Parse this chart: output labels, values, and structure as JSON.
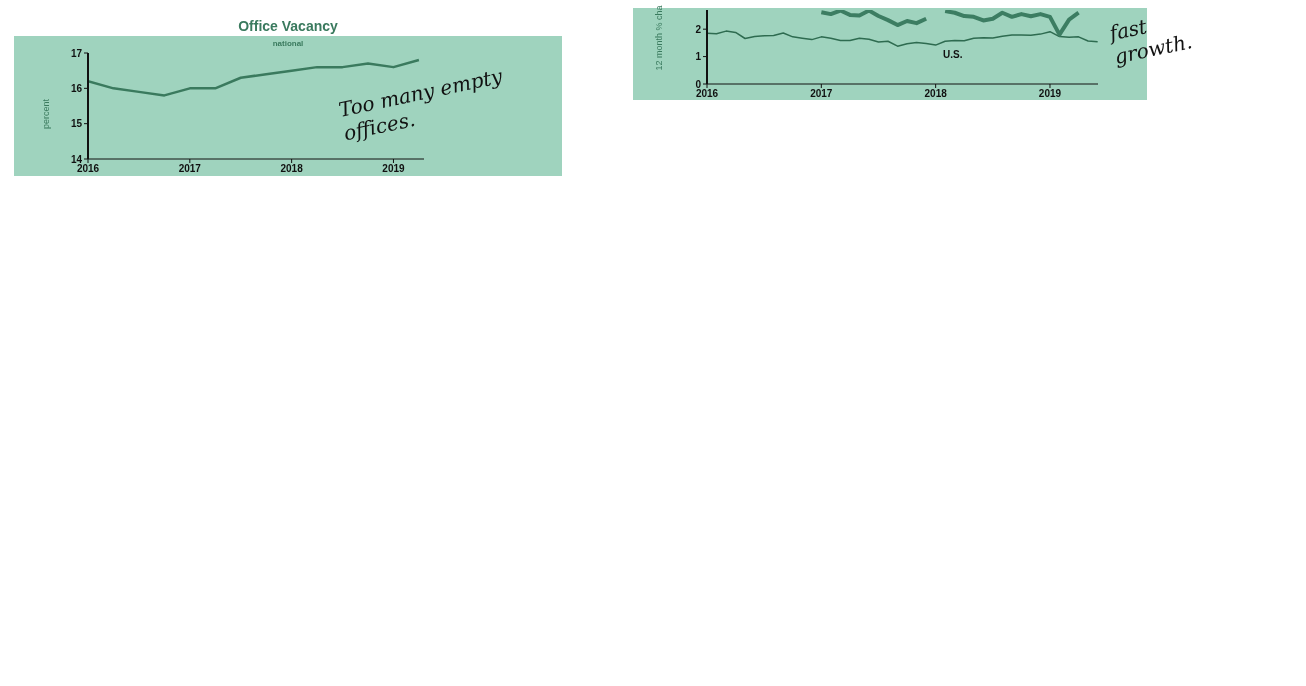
{
  "chart_data": [
    {
      "type": "line",
      "title": "Office Vacancy",
      "subtitle": "national",
      "ylabel": "percent",
      "x": [
        2016,
        2016.25,
        2016.5,
        2016.75,
        2017,
        2017.25,
        2017.5,
        2017.75,
        2018,
        2018.25,
        2018.5,
        2018.75,
        2019,
        2019.25
      ],
      "series": [
        {
          "color": "#3a7a5e",
          "values": [
            16.2,
            16.0,
            15.9,
            15.8,
            16.0,
            16.0,
            16.3,
            16.4,
            16.5,
            16.6,
            16.6,
            16.7,
            16.6,
            16.8
          ]
        }
      ],
      "xlim": [
        2016,
        2019.3
      ],
      "xticks": [
        2016,
        2017,
        2018,
        2019
      ],
      "ylim": [
        14,
        17
      ],
      "yticks": [
        14,
        15,
        16,
        17
      ],
      "annotations": [
        "Too many empty offices."
      ],
      "grid": false,
      "legend": false,
      "marker": "none",
      "line_style": "solid"
    },
    {
      "type": "line",
      "ylabel": "12 month % cha",
      "x": [
        2016,
        2016.083,
        2016.167,
        2016.25,
        2016.333,
        2016.417,
        2016.5,
        2016.583,
        2016.667,
        2016.75,
        2016.833,
        2016.917,
        2017,
        2017.083,
        2017.167,
        2017.25,
        2017.333,
        2017.417,
        2017.5,
        2017.583,
        2017.667,
        2017.75,
        2017.833,
        2017.917,
        2018,
        2018.083,
        2018.167,
        2018.25,
        2018.333,
        2018.417,
        2018.5,
        2018.583,
        2018.667,
        2018.75,
        2018.833,
        2018.917,
        2019,
        2019.083,
        2019.167,
        2019.25,
        2019.333,
        2019.417
      ],
      "series": [
        {
          "name": "U.S.",
          "color": "#2e6b50",
          "values": [
            1.85,
            1.83,
            1.93,
            1.88,
            1.66,
            1.73,
            1.76,
            1.77,
            1.86,
            1.72,
            1.67,
            1.62,
            1.72,
            1.67,
            1.59,
            1.59,
            1.67,
            1.63,
            1.53,
            1.56,
            1.38,
            1.47,
            1.51,
            1.48,
            1.42,
            1.56,
            1.59,
            1.58,
            1.67,
            1.69,
            1.68,
            1.74,
            1.79,
            1.79,
            1.78,
            1.82,
            1.91,
            1.73,
            1.71,
            1.72,
            1.57,
            1.54
          ]
        },
        {
          "color": "#3c7d62",
          "values": [
            null,
            null,
            null,
            null,
            null,
            null,
            null,
            null,
            null,
            null,
            null,
            null,
            2.62,
            2.55,
            2.68,
            2.52,
            2.5,
            2.68,
            2.48,
            2.33,
            2.15,
            2.3,
            2.22,
            2.38,
            null,
            2.66,
            2.6,
            2.48,
            2.45,
            2.32,
            2.38,
            2.6,
            2.45,
            2.55,
            2.47,
            2.55,
            2.45,
            1.8,
            2.35,
            2.6,
            null,
            null
          ]
        }
      ],
      "xlim": [
        2016,
        2019.42
      ],
      "xticks": [
        2016,
        2017,
        2018,
        2019
      ],
      "ylim": [
        0,
        2.7
      ],
      "yticks": [
        0,
        1,
        2
      ],
      "annotations": [
        "fast growth."
      ],
      "grid": false,
      "legend": false,
      "marker": "none",
      "line_style": "solid"
    }
  ]
}
